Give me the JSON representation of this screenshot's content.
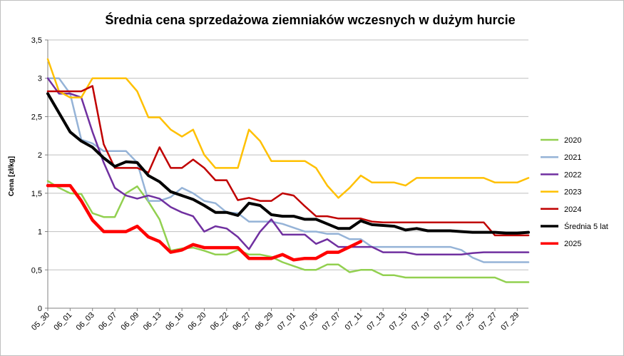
{
  "chart_data": {
    "type": "line",
    "title": "Średnia cena sprzedażowa ziemniaków  wczesnych w dużym hurcie",
    "ylabel": "Cena [zł/kg]",
    "xlabel": "",
    "ylim": [
      0,
      3.5
    ],
    "yticks": [
      "0",
      "0,5",
      "1",
      "1,5",
      "2",
      "2,5",
      "3",
      "3,5"
    ],
    "xtick_labels": [
      "05_30",
      "06_01",
      "06_03",
      "06_07",
      "06_09",
      "06_13",
      "06_16",
      "06_20",
      "06_22",
      "06_27",
      "06_29",
      "07_01",
      "07_05",
      "07_07",
      "07_11",
      "07_13",
      "07_15",
      "07_19",
      "07_21",
      "07_25",
      "07_27",
      "07_29"
    ],
    "grid": true,
    "legend_position": "right",
    "series": [
      {
        "name": "2020",
        "color": "#92d050",
        "width": 2.5,
        "values": [
          1.66,
          1.57,
          1.5,
          1.49,
          1.24,
          1.19,
          1.19,
          1.5,
          1.59,
          1.39,
          1.16,
          0.75,
          0.78,
          0.79,
          0.75,
          0.7,
          0.7,
          0.76,
          0.7,
          0.7,
          0.67,
          0.6,
          0.55,
          0.5,
          0.5,
          0.57,
          0.57,
          0.47,
          0.5,
          0.5,
          0.43,
          0.43,
          0.4,
          0.4,
          0.4,
          0.4,
          0.4,
          0.4,
          0.4,
          0.4,
          0.4,
          0.34,
          0.34,
          0.34
        ]
      },
      {
        "name": "2021",
        "color": "#95b3d7",
        "width": 2.5,
        "values": [
          3.0,
          3.0,
          2.8,
          2.2,
          2.15,
          2.05,
          2.05,
          2.05,
          1.9,
          1.4,
          1.4,
          1.45,
          1.57,
          1.5,
          1.4,
          1.37,
          1.25,
          1.24,
          1.13,
          1.13,
          1.13,
          1.1,
          1.05,
          1.0,
          1.0,
          0.97,
          0.97,
          0.9,
          0.9,
          0.8,
          0.8,
          0.8,
          0.8,
          0.8,
          0.8,
          0.8,
          0.8,
          0.76,
          0.66,
          0.6,
          0.6,
          0.6,
          0.6,
          0.6
        ]
      },
      {
        "name": "2022",
        "color": "#7030a0",
        "width": 2.5,
        "values": [
          3.0,
          2.8,
          2.8,
          2.75,
          2.3,
          1.9,
          1.57,
          1.47,
          1.43,
          1.47,
          1.43,
          1.32,
          1.25,
          1.2,
          1.0,
          1.07,
          1.04,
          0.93,
          0.77,
          1.0,
          1.16,
          0.96,
          0.96,
          0.96,
          0.84,
          0.9,
          0.8,
          0.8,
          0.8,
          0.8,
          0.73,
          0.73,
          0.73,
          0.7,
          0.7,
          0.7,
          0.7,
          0.7,
          0.72,
          0.73,
          0.73,
          0.73,
          0.73,
          0.73
        ]
      },
      {
        "name": "2023",
        "color": "#ffc000",
        "width": 2.5,
        "values": [
          3.25,
          2.83,
          2.75,
          2.75,
          3.0,
          3.0,
          3.0,
          3.0,
          2.83,
          2.49,
          2.49,
          2.33,
          2.24,
          2.33,
          2.0,
          1.83,
          1.83,
          1.83,
          2.33,
          2.18,
          1.92,
          1.92,
          1.92,
          1.92,
          1.83,
          1.6,
          1.44,
          1.57,
          1.73,
          1.64,
          1.64,
          1.64,
          1.6,
          1.7,
          1.7,
          1.7,
          1.7,
          1.7,
          1.7,
          1.7,
          1.64,
          1.64,
          1.64,
          1.7
        ]
      },
      {
        "name": "2024",
        "color": "#c00000",
        "width": 2.5,
        "values": [
          2.83,
          2.83,
          2.83,
          2.83,
          2.9,
          2.14,
          1.83,
          1.83,
          1.83,
          1.77,
          2.1,
          1.83,
          1.83,
          1.94,
          1.83,
          1.67,
          1.67,
          1.41,
          1.44,
          1.4,
          1.4,
          1.5,
          1.47,
          1.33,
          1.2,
          1.2,
          1.17,
          1.17,
          1.17,
          1.13,
          1.12,
          1.12,
          1.12,
          1.12,
          1.12,
          1.12,
          1.12,
          1.12,
          1.12,
          1.12,
          0.95,
          0.95,
          0.95,
          0.95
        ]
      },
      {
        "name": "Średnia 5 lat",
        "color": "#000000",
        "width": 4,
        "values": [
          2.8,
          2.55,
          2.3,
          2.18,
          2.1,
          1.96,
          1.85,
          1.91,
          1.9,
          1.73,
          1.65,
          1.52,
          1.47,
          1.42,
          1.34,
          1.25,
          1.25,
          1.21,
          1.37,
          1.34,
          1.22,
          1.2,
          1.2,
          1.16,
          1.16,
          1.1,
          1.04,
          1.04,
          1.14,
          1.09,
          1.08,
          1.07,
          1.02,
          1.04,
          1.01,
          1.01,
          1.01,
          1.0,
          0.99,
          0.99,
          0.99,
          0.98,
          0.98,
          0.99
        ]
      },
      {
        "name": "2025",
        "color": "#ff0000",
        "width": 4.5,
        "values": [
          1.6,
          1.6,
          1.6,
          1.4,
          1.15,
          1.0,
          1.0,
          1.0,
          1.07,
          0.93,
          0.87,
          0.73,
          0.76,
          0.83,
          0.79,
          0.79,
          0.79,
          0.79,
          0.65,
          0.65,
          0.65,
          0.7,
          0.63,
          0.65,
          0.65,
          0.73,
          0.73,
          0.8,
          0.87
        ]
      }
    ]
  }
}
